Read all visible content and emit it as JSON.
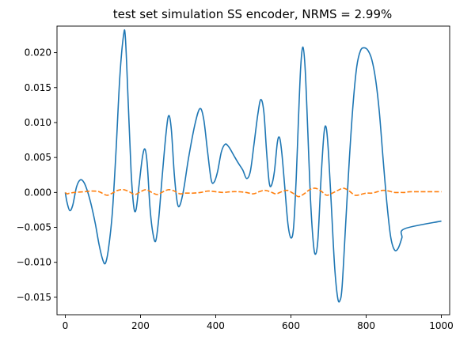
{
  "chart_data": {
    "type": "line",
    "title": "test set simulation SS encoder, NRMS = 2.99%",
    "xlabel": "",
    "ylabel": "",
    "xlim": [
      -22,
      1022
    ],
    "ylim": [
      -0.0175,
      0.0238
    ],
    "grid": false,
    "legend": "none",
    "x_ticks": [
      0,
      200,
      400,
      600,
      800,
      1000
    ],
    "x_tick_labels": [
      "0",
      "200",
      "400",
      "600",
      "800",
      "1000"
    ],
    "y_ticks": [
      0.02,
      0.015,
      0.01,
      0.005,
      0.0,
      -0.005,
      -0.01,
      -0.015
    ],
    "y_tick_labels": [
      "0.020",
      "0.015",
      "0.010",
      "0.005",
      "0.000",
      "−0.005",
      "−0.010",
      "−0.015"
    ],
    "series": [
      {
        "color": "#1f77b4",
        "style": "solid",
        "points": [
          [
            0,
            0.0
          ],
          [
            5,
            -0.0015
          ],
          [
            12,
            -0.0026
          ],
          [
            20,
            -0.0018
          ],
          [
            30,
            0.0008
          ],
          [
            40,
            0.0018
          ],
          [
            50,
            0.0014
          ],
          [
            60,
            0.0
          ],
          [
            70,
            -0.002
          ],
          [
            80,
            -0.0045
          ],
          [
            90,
            -0.0075
          ],
          [
            100,
            -0.0097
          ],
          [
            107,
            -0.0101
          ],
          [
            115,
            -0.008
          ],
          [
            125,
            -0.003
          ],
          [
            135,
            0.006
          ],
          [
            145,
            0.0165
          ],
          [
            155,
            0.0225
          ],
          [
            160,
            0.022
          ],
          [
            168,
            0.012
          ],
          [
            175,
            0.003
          ],
          [
            182,
            -0.002
          ],
          [
            188,
            -0.0025
          ],
          [
            195,
            0.0005
          ],
          [
            205,
            0.005
          ],
          [
            212,
            0.0062
          ],
          [
            218,
            0.004
          ],
          [
            225,
            -0.002
          ],
          [
            232,
            -0.0055
          ],
          [
            240,
            -0.007
          ],
          [
            248,
            -0.004
          ],
          [
            258,
            0.0025
          ],
          [
            268,
            0.0085
          ],
          [
            275,
            0.011
          ],
          [
            282,
            0.009
          ],
          [
            290,
            0.0025
          ],
          [
            298,
            -0.0015
          ],
          [
            305,
            -0.0018
          ],
          [
            315,
            0.0005
          ],
          [
            328,
            0.005
          ],
          [
            345,
            0.0098
          ],
          [
            358,
            0.012
          ],
          [
            368,
            0.0105
          ],
          [
            378,
            0.006
          ],
          [
            388,
            0.0018
          ],
          [
            396,
            0.0015
          ],
          [
            405,
            0.003
          ],
          [
            415,
            0.0058
          ],
          [
            425,
            0.0069
          ],
          [
            435,
            0.0065
          ],
          [
            448,
            0.0053
          ],
          [
            460,
            0.0042
          ],
          [
            472,
            0.0032
          ],
          [
            482,
            0.002
          ],
          [
            492,
            0.003
          ],
          [
            502,
            0.007
          ],
          [
            512,
            0.0112
          ],
          [
            520,
            0.0133
          ],
          [
            528,
            0.0115
          ],
          [
            535,
            0.006
          ],
          [
            542,
            0.0015
          ],
          [
            548,
            0.001
          ],
          [
            556,
            0.003
          ],
          [
            564,
            0.0072
          ],
          [
            570,
            0.0078
          ],
          [
            576,
            0.0055
          ],
          [
            584,
            0.0005
          ],
          [
            592,
            -0.0045
          ],
          [
            600,
            -0.0065
          ],
          [
            607,
            -0.005
          ],
          [
            614,
            0.002
          ],
          [
            620,
            0.0105
          ],
          [
            626,
            0.018
          ],
          [
            632,
            0.0208
          ],
          [
            638,
            0.0175
          ],
          [
            645,
            0.0085
          ],
          [
            652,
            -0.001
          ],
          [
            660,
            -0.0075
          ],
          [
            666,
            -0.0088
          ],
          [
            672,
            -0.0065
          ],
          [
            680,
            0.002
          ],
          [
            688,
            0.0085
          ],
          [
            694,
            0.0092
          ],
          [
            700,
            0.0055
          ],
          [
            708,
            -0.0025
          ],
          [
            716,
            -0.0105
          ],
          [
            724,
            -0.015
          ],
          [
            730,
            -0.0155
          ],
          [
            736,
            -0.0135
          ],
          [
            745,
            -0.005
          ],
          [
            755,
            0.0045
          ],
          [
            765,
            0.0125
          ],
          [
            775,
            0.018
          ],
          [
            785,
            0.0203
          ],
          [
            795,
            0.0207
          ],
          [
            805,
            0.0203
          ],
          [
            815,
            0.019
          ],
          [
            825,
            0.0162
          ],
          [
            835,
            0.0115
          ],
          [
            845,
            0.0048
          ],
          [
            855,
            -0.0015
          ],
          [
            865,
            -0.0063
          ],
          [
            875,
            -0.0082
          ],
          [
            885,
            -0.008
          ],
          [
            895,
            -0.0065
          ],
          [
            902,
            -0.0052
          ],
          [
            1000,
            -0.0041
          ]
        ]
      },
      {
        "color": "#ff7f0e",
        "style": "dashed",
        "points": [
          [
            0,
            0.0
          ],
          [
            5,
            -0.0002
          ],
          [
            12,
            -0.0001
          ],
          [
            25,
            0.0
          ],
          [
            50,
            0.0001
          ],
          [
            70,
            0.0002
          ],
          [
            90,
            0.0001
          ],
          [
            110,
            -0.0004
          ],
          [
            125,
            -0.0001
          ],
          [
            140,
            0.0003
          ],
          [
            155,
            0.0004
          ],
          [
            170,
            0.0001
          ],
          [
            185,
            -0.0003
          ],
          [
            200,
            0.0001
          ],
          [
            215,
            0.0004
          ],
          [
            230,
            0.0
          ],
          [
            245,
            -0.0003
          ],
          [
            260,
            0.0001
          ],
          [
            275,
            0.0004
          ],
          [
            290,
            0.0002
          ],
          [
            305,
            -0.0002
          ],
          [
            320,
            -0.0001
          ],
          [
            340,
            -0.0001
          ],
          [
            360,
            0.0
          ],
          [
            380,
            0.0002
          ],
          [
            400,
            0.0001
          ],
          [
            420,
            0.0
          ],
          [
            440,
            0.0001
          ],
          [
            460,
            0.0001
          ],
          [
            480,
            0.0
          ],
          [
            500,
            -0.0002
          ],
          [
            515,
            0.0001
          ],
          [
            530,
            0.0003
          ],
          [
            545,
            0.0001
          ],
          [
            560,
            -0.0002
          ],
          [
            575,
            0.0001
          ],
          [
            590,
            0.0003
          ],
          [
            605,
            -0.0001
          ],
          [
            620,
            -0.0006
          ],
          [
            635,
            -0.0002
          ],
          [
            650,
            0.0004
          ],
          [
            665,
            0.0006
          ],
          [
            680,
            0.0002
          ],
          [
            695,
            -0.0004
          ],
          [
            710,
            -0.0001
          ],
          [
            725,
            0.0003
          ],
          [
            740,
            0.0006
          ],
          [
            755,
            0.0002
          ],
          [
            770,
            -0.0004
          ],
          [
            785,
            -0.0003
          ],
          [
            800,
            -0.0001
          ],
          [
            815,
            -0.0001
          ],
          [
            830,
            0.0001
          ],
          [
            845,
            0.0003
          ],
          [
            860,
            0.0002
          ],
          [
            875,
            0.0
          ],
          [
            890,
            0.0
          ],
          [
            905,
            0.0
          ],
          [
            920,
            0.0001
          ],
          [
            1000,
            0.0001
          ]
        ]
      }
    ]
  }
}
